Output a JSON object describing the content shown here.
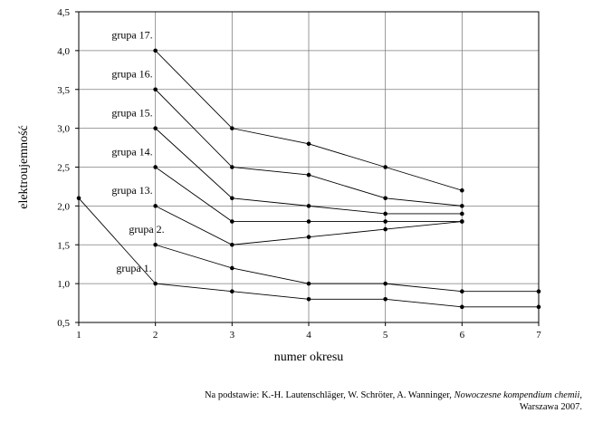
{
  "chart_data": {
    "type": "line",
    "xlabel": "numer okresu",
    "ylabel": "elektroujemność",
    "xlim": [
      1,
      7
    ],
    "ylim": [
      0.5,
      4.5
    ],
    "x_ticks": [
      "1",
      "2",
      "3",
      "4",
      "5",
      "6",
      "7"
    ],
    "y_ticks": [
      "0,5",
      "1,0",
      "1,5",
      "2,0",
      "2,5",
      "3,0",
      "3,5",
      "4,0",
      "4,5"
    ],
    "grid": true,
    "series": [
      {
        "name": "grupa 1.",
        "x": [
          1,
          2,
          3,
          4,
          5,
          6,
          7
        ],
        "y": [
          2.1,
          1.0,
          0.9,
          0.8,
          0.8,
          0.7,
          0.7
        ]
      },
      {
        "name": "grupa 2.",
        "x": [
          2,
          3,
          4,
          5,
          6,
          7
        ],
        "y": [
          1.5,
          1.2,
          1.0,
          1.0,
          0.9,
          0.9
        ]
      },
      {
        "name": "grupa 13.",
        "x": [
          2,
          3,
          4,
          5,
          6
        ],
        "y": [
          2.0,
          1.5,
          1.6,
          1.7,
          1.8
        ]
      },
      {
        "name": "grupa 14.",
        "x": [
          2,
          3,
          4,
          5,
          6
        ],
        "y": [
          2.5,
          1.8,
          1.8,
          1.8,
          1.8
        ]
      },
      {
        "name": "grupa 15.",
        "x": [
          2,
          3,
          4,
          5,
          6
        ],
        "y": [
          3.0,
          2.1,
          2.0,
          1.9,
          1.9
        ]
      },
      {
        "name": "grupa 16.",
        "x": [
          2,
          3,
          4,
          5,
          6
        ],
        "y": [
          3.5,
          2.5,
          2.4,
          2.1,
          2.0
        ]
      },
      {
        "name": "grupa 17.",
        "x": [
          2,
          3,
          4,
          5,
          6
        ],
        "y": [
          4.0,
          3.0,
          2.8,
          2.5,
          2.2
        ]
      }
    ]
  },
  "source": {
    "prefix": "Na podstawie: K.-H. Lautenschläger, W. Schröter, A. Wanninger, ",
    "title": "Nowoczesne kompendium chemii,",
    "suffix": "Warszawa 2007."
  }
}
